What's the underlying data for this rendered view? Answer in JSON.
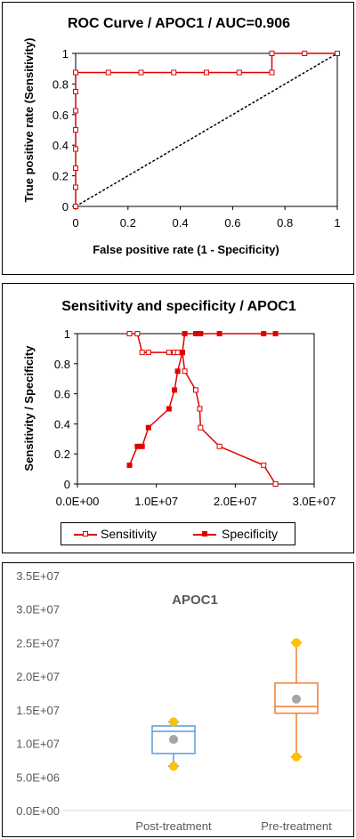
{
  "colors": {
    "red": "#e00000",
    "blue": "#5b9bd5",
    "orange": "#ed7d31",
    "gold": "#ffc000",
    "gray": "#a5a5a5"
  },
  "roc": {
    "title": "ROC Curve / APOC1 / AUC=0.906",
    "xlabel": "False positive rate (1 - Specificity)",
    "ylabel": "True positive rate (Sensitivity)",
    "xticks": [
      "0",
      "0.2",
      "0.4",
      "0.6",
      "0.8",
      "1"
    ],
    "yticks": [
      "0",
      "0.2",
      "0.4",
      "0.6",
      "0.8",
      "1"
    ]
  },
  "sens_spec": {
    "title": "Sensitivity and specificity / APOC1",
    "ylabel": "Sensitivity / Specificity",
    "xticks": [
      "0.0E+00",
      "1.0E+07",
      "2.0E+07",
      "3.0E+07"
    ],
    "yticks": [
      "0",
      "0.2",
      "0.4",
      "0.6",
      "0.8",
      "1"
    ],
    "legend": {
      "sensitivity": "Sensitivity",
      "specificity": "Specificity"
    }
  },
  "box": {
    "title": "APOC1",
    "yticks": [
      "0.0E+00",
      "5.0E+06",
      "1.0E+07",
      "1.5E+07",
      "2.0E+07",
      "2.5E+07",
      "3.0E+07",
      "3.5E+07"
    ],
    "categories": [
      "Post-treatment",
      "Pre-treatment"
    ]
  },
  "chart_data": [
    {
      "type": "line",
      "title": "ROC Curve / APOC1 / AUC=0.906",
      "xlabel": "False positive rate (1 - Specificity)",
      "ylabel": "True positive rate (Sensitivity)",
      "xlim": [
        0,
        1
      ],
      "ylim": [
        0,
        1
      ],
      "series": [
        {
          "name": "ROC",
          "x": [
            0,
            0,
            0,
            0,
            0,
            0,
            0,
            0,
            0,
            0.125,
            0.25,
            0.375,
            0.5,
            0.625,
            0.75,
            0.75,
            0.875,
            1
          ],
          "y": [
            0,
            0.125,
            0.25,
            0.375,
            0.5,
            0.625,
            0.75,
            0.875,
            0.875,
            0.875,
            0.875,
            0.875,
            0.875,
            0.875,
            0.875,
            1,
            1,
            1
          ]
        },
        {
          "x": [
            0,
            1
          ],
          "y": [
            0,
            1
          ]
        }
      ]
    },
    {
      "type": "line",
      "title": "Sensitivity and specificity / APOC1",
      "ylabel": "Sensitivity / Specificity",
      "xlim": [
        0,
        30000000
      ],
      "ylim": [
        0,
        1
      ],
      "legend": "bottom",
      "series": [
        {
          "name": "Sensitivity",
          "x": [
            6600000,
            7600000,
            8200000,
            9000000,
            11600000,
            12300000,
            12700000,
            13300000,
            13600000,
            15000000,
            15500000,
            15600000,
            18000000,
            23600000,
            25100000
          ],
          "y": [
            1,
            1,
            0.875,
            0.875,
            0.875,
            0.875,
            0.875,
            0.875,
            0.75,
            0.625,
            0.5,
            0.375,
            0.25,
            0.125,
            0
          ]
        },
        {
          "name": "Specificity",
          "x": [
            6600000,
            7600000,
            8200000,
            9000000,
            11600000,
            12300000,
            12700000,
            13300000,
            13600000,
            15000000,
            15500000,
            15600000,
            18000000,
            23600000,
            25100000
          ],
          "y": [
            0.125,
            0.25,
            0.25,
            0.375,
            0.5,
            0.625,
            0.75,
            0.875,
            1,
            1,
            1,
            1,
            1,
            1,
            1
          ]
        }
      ]
    },
    {
      "type": "box",
      "title": "APOC1",
      "categories": [
        "Post-treatment",
        "Pre-treatment"
      ],
      "ylim": [
        0,
        35000000
      ],
      "boxes": [
        {
          "min": 6600000,
          "q1": 8500000,
          "median": 11800000,
          "q3": 12600000,
          "max": 13200000,
          "mean": 10600000
        },
        {
          "min": 8000000,
          "q1": 14500000,
          "median": 15500000,
          "q3": 19000000,
          "max": 25000000,
          "mean": 16600000
        }
      ]
    }
  ]
}
